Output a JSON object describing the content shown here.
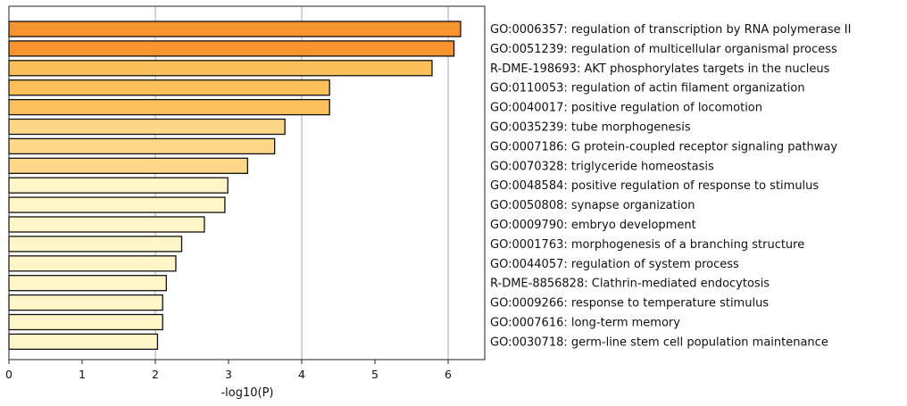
{
  "chart_data": {
    "type": "bar",
    "orientation": "horizontal",
    "xlabel": "-log10(P)",
    "xlim": [
      0,
      6.5
    ],
    "xticks": [
      0,
      1,
      2,
      3,
      4,
      5,
      6
    ],
    "grid": "vertical lines at x = 2, 4, 6",
    "labels_side": "right",
    "categories": [
      "GO:0006357: regulation of transcription by RNA polymerase II",
      "GO:0051239: regulation of multicellular organismal process",
      "R-DME-198693: AKT phosphorylates targets in the nucleus",
      "GO:0110053: regulation of actin filament organization",
      "GO:0040017: positive regulation of locomotion",
      "GO:0035239: tube morphogenesis",
      "GO:0007186: G protein-coupled receptor signaling pathway",
      "GO:0070328: triglyceride homeostasis",
      "GO:0048584: positive regulation of response to stimulus",
      "GO:0050808: synapse organization",
      "GO:0009790: embryo development",
      "GO:0001763: morphogenesis of a branching structure",
      "GO:0044057: regulation of system process",
      "R-DME-8856828: Clathrin-mediated endocytosis",
      "GO:0009266: response to temperature stimulus",
      "GO:0007616: long-term memory",
      "GO:0030718: germ-line stem cell population maintenance"
    ],
    "values": [
      6.17,
      6.08,
      5.78,
      4.38,
      4.38,
      3.77,
      3.63,
      3.26,
      2.99,
      2.95,
      2.67,
      2.36,
      2.28,
      2.15,
      2.1,
      2.1,
      2.03
    ],
    "colors": [
      "#f7942f",
      "#f7942f",
      "#fbc05a",
      "#fbc05a",
      "#fbc05a",
      "#fdd889",
      "#fdd889",
      "#fdd889",
      "#fff5c8",
      "#fff5c8",
      "#fff5c8",
      "#fff5c8",
      "#fff5c8",
      "#fff5c8",
      "#fff5c8",
      "#fff5c8",
      "#fff5c8"
    ]
  }
}
